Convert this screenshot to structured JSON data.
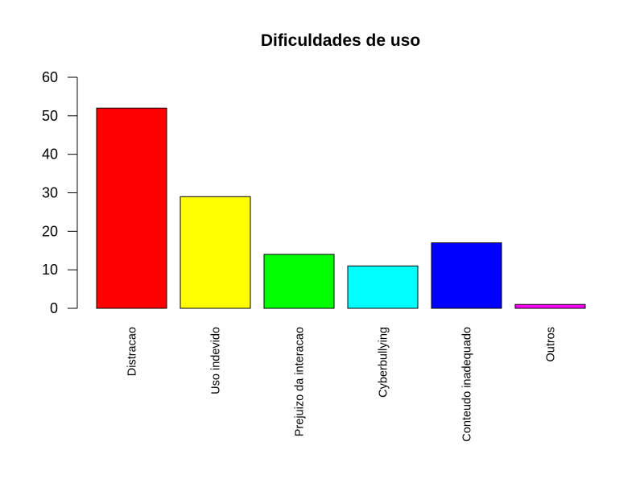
{
  "chart_data": {
    "type": "bar",
    "title": "Dificuldades de uso",
    "xlabel": "",
    "ylabel": "",
    "categories": [
      "Distracao",
      "Uso indevido",
      "Prejuizo da interacao",
      "Cyberbullying",
      "Conteudo inadequado",
      "Outros"
    ],
    "values": [
      52,
      29,
      14,
      11,
      17,
      1
    ],
    "colors": [
      "#ff0000",
      "#ffff00",
      "#00ff00",
      "#00ffff",
      "#0000ff",
      "#ff00ff"
    ],
    "ylim": [
      0,
      60
    ],
    "yticks": [
      0,
      10,
      20,
      30,
      40,
      50,
      60
    ],
    "grid": false,
    "legend": "none"
  }
}
